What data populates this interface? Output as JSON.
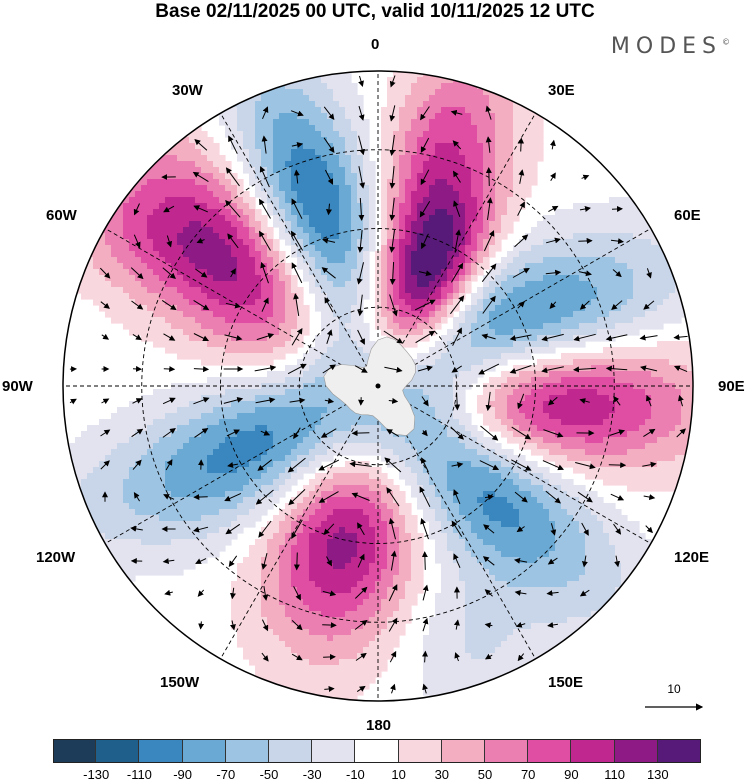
{
  "title": "Base 02/11/2025 00 UTC, valid 10/11/2025 12 UTC",
  "logo": "MODES",
  "logo_mark": "©",
  "longitude_labels": {
    "n0": "0",
    "e30": "30E",
    "w30": "30W",
    "e60": "60E",
    "w60": "60W",
    "w90": "90W",
    "e90": "90E",
    "w120": "120W",
    "e120": "120E",
    "w150": "150W",
    "e150": "150E",
    "s180": "180"
  },
  "reference_vector": {
    "label": "10"
  },
  "colorbar": {
    "colors": [
      "#1d3c5a",
      "#1f5f8b",
      "#3a86be",
      "#6aa9d3",
      "#9dc4e2",
      "#c9d6ea",
      "#e3e3f0",
      "#ffffff",
      "#f8d7de",
      "#f3aec1",
      "#ec7fb1",
      "#e04ea4",
      "#c0288f",
      "#8e1a86",
      "#571a78"
    ],
    "tick_labels": [
      "-130",
      "-110",
      "-90",
      "-70",
      "-50",
      "-30",
      "-10",
      "10",
      "30",
      "50",
      "70",
      "90",
      "110",
      "130"
    ]
  },
  "anomaly_centers": [
    {
      "lon": 340,
      "colat": 42,
      "value": -135,
      "sx": 22,
      "sy": 55
    },
    {
      "lon": 312,
      "colat": 45,
      "value": 125,
      "sx": 26,
      "sy": 55
    },
    {
      "lon": 14,
      "colat": 38,
      "value": 85,
      "sx": 18,
      "sy": 50
    },
    {
      "lon": 27,
      "colat": 30,
      "value": 110,
      "sx": 16,
      "sy": 35
    },
    {
      "lon": 68,
      "colat": 30,
      "value": -130,
      "sx": 24,
      "sy": 60
    },
    {
      "lon": 94,
      "colat": 36,
      "value": 140,
      "sx": 24,
      "sy": 58
    },
    {
      "lon": 133,
      "colat": 33,
      "value": -110,
      "sx": 24,
      "sy": 58
    },
    {
      "lon": 193,
      "colat": 40,
      "value": 120,
      "sx": 26,
      "sy": 38
    },
    {
      "lon": 243,
      "colat": 32,
      "value": -95,
      "sx": 24,
      "sy": 48
    },
    {
      "lon": 248,
      "colat": 72,
      "value": -25,
      "sx": 20,
      "sy": 40
    },
    {
      "lon": 300,
      "colat": 72,
      "value": 30,
      "sx": 20,
      "sy": 30
    },
    {
      "lon": 18,
      "colat": 70,
      "value": 40,
      "sx": 22,
      "sy": 30
    },
    {
      "lon": 160,
      "colat": 70,
      "value": -30,
      "sx": 24,
      "sy": 30
    }
  ]
}
